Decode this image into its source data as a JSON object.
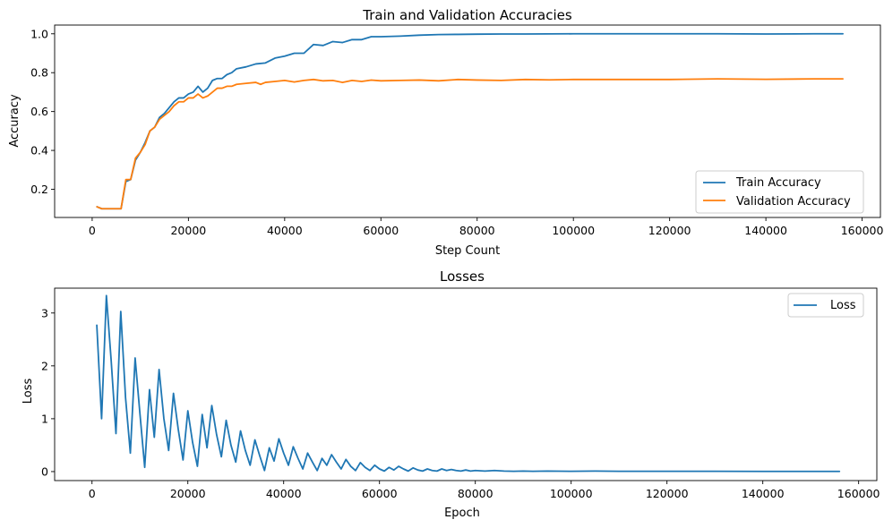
{
  "figure": {
    "background": "#ffffff"
  },
  "chart_data": [
    {
      "type": "line",
      "title": "Train and Validation Accuracies",
      "xlabel": "Step Count",
      "ylabel": "Accuracy",
      "xlim": [
        -7800,
        163800
      ],
      "ylim": [
        0.055,
        1.045
      ],
      "xticks": [
        0,
        20000,
        40000,
        60000,
        80000,
        100000,
        120000,
        140000,
        160000
      ],
      "xtick_labels": [
        "0",
        "20000",
        "40000",
        "60000",
        "80000",
        "100000",
        "120000",
        "140000",
        "160000"
      ],
      "yticks": [
        0.2,
        0.4,
        0.6,
        0.8,
        1.0
      ],
      "ytick_labels": [
        "0.2",
        "0.4",
        "0.6",
        "0.8",
        "1.0"
      ],
      "grid": false,
      "legend": {
        "position": "lower-right",
        "entries": [
          "Train Accuracy",
          "Validation Accuracy"
        ]
      },
      "series": [
        {
          "name": "Train Accuracy",
          "color": "#1f77b4",
          "points": [
            [
              1000,
              0.11
            ],
            [
              2000,
              0.1
            ],
            [
              3000,
              0.1
            ],
            [
              4000,
              0.1
            ],
            [
              5000,
              0.1
            ],
            [
              6000,
              0.1
            ],
            [
              7000,
              0.24
            ],
            [
              8000,
              0.25
            ],
            [
              9000,
              0.35
            ],
            [
              10000,
              0.39
            ],
            [
              11000,
              0.44
            ],
            [
              12000,
              0.5
            ],
            [
              13000,
              0.52
            ],
            [
              14000,
              0.57
            ],
            [
              15000,
              0.59
            ],
            [
              16000,
              0.62
            ],
            [
              17000,
              0.65
            ],
            [
              18000,
              0.67
            ],
            [
              19000,
              0.67
            ],
            [
              20000,
              0.69
            ],
            [
              21000,
              0.7
            ],
            [
              22000,
              0.73
            ],
            [
              23000,
              0.7
            ],
            [
              24000,
              0.72
            ],
            [
              25000,
              0.76
            ],
            [
              26000,
              0.77
            ],
            [
              27000,
              0.77
            ],
            [
              28000,
              0.79
            ],
            [
              29000,
              0.8
            ],
            [
              30000,
              0.82
            ],
            [
              32000,
              0.83
            ],
            [
              34000,
              0.845
            ],
            [
              36000,
              0.85
            ],
            [
              38000,
              0.875
            ],
            [
              40000,
              0.885
            ],
            [
              42000,
              0.9
            ],
            [
              44000,
              0.9
            ],
            [
              46000,
              0.945
            ],
            [
              48000,
              0.94
            ],
            [
              50000,
              0.96
            ],
            [
              52000,
              0.955
            ],
            [
              54000,
              0.97
            ],
            [
              56000,
              0.97
            ],
            [
              58000,
              0.985
            ],
            [
              60000,
              0.985
            ],
            [
              64000,
              0.988
            ],
            [
              68000,
              0.993
            ],
            [
              72000,
              0.996
            ],
            [
              76000,
              0.997
            ],
            [
              80000,
              0.998
            ],
            [
              85000,
              0.999
            ],
            [
              90000,
              0.999
            ],
            [
              100000,
              1.0
            ],
            [
              110000,
              1.0
            ],
            [
              120000,
              1.0
            ],
            [
              130000,
              1.0
            ],
            [
              140000,
              0.999
            ],
            [
              150000,
              1.0
            ],
            [
              156000,
              1.0
            ]
          ]
        },
        {
          "name": "Validation Accuracy",
          "color": "#ff7f0e",
          "points": [
            [
              1000,
              0.11
            ],
            [
              2000,
              0.1
            ],
            [
              3000,
              0.1
            ],
            [
              4000,
              0.1
            ],
            [
              5000,
              0.1
            ],
            [
              6000,
              0.1
            ],
            [
              7000,
              0.25
            ],
            [
              8000,
              0.25
            ],
            [
              9000,
              0.36
            ],
            [
              10000,
              0.39
            ],
            [
              11000,
              0.43
            ],
            [
              12000,
              0.5
            ],
            [
              13000,
              0.52
            ],
            [
              14000,
              0.56
            ],
            [
              15000,
              0.58
            ],
            [
              16000,
              0.6
            ],
            [
              17000,
              0.63
            ],
            [
              18000,
              0.65
            ],
            [
              19000,
              0.65
            ],
            [
              20000,
              0.67
            ],
            [
              21000,
              0.67
            ],
            [
              22000,
              0.69
            ],
            [
              23000,
              0.67
            ],
            [
              24000,
              0.68
            ],
            [
              25000,
              0.7
            ],
            [
              26000,
              0.72
            ],
            [
              27000,
              0.72
            ],
            [
              28000,
              0.73
            ],
            [
              29000,
              0.73
            ],
            [
              30000,
              0.74
            ],
            [
              32000,
              0.745
            ],
            [
              34000,
              0.75
            ],
            [
              35000,
              0.74
            ],
            [
              36000,
              0.75
            ],
            [
              38000,
              0.755
            ],
            [
              40000,
              0.76
            ],
            [
              42000,
              0.752
            ],
            [
              44000,
              0.76
            ],
            [
              46000,
              0.765
            ],
            [
              48000,
              0.758
            ],
            [
              50000,
              0.76
            ],
            [
              52000,
              0.75
            ],
            [
              54000,
              0.76
            ],
            [
              56000,
              0.755
            ],
            [
              58000,
              0.762
            ],
            [
              60000,
              0.758
            ],
            [
              64000,
              0.76
            ],
            [
              68000,
              0.762
            ],
            [
              72000,
              0.758
            ],
            [
              76000,
              0.765
            ],
            [
              80000,
              0.762
            ],
            [
              85000,
              0.76
            ],
            [
              90000,
              0.765
            ],
            [
              95000,
              0.763
            ],
            [
              100000,
              0.765
            ],
            [
              110000,
              0.765
            ],
            [
              120000,
              0.765
            ],
            [
              130000,
              0.768
            ],
            [
              140000,
              0.766
            ],
            [
              150000,
              0.768
            ],
            [
              156000,
              0.768
            ]
          ]
        }
      ]
    },
    {
      "type": "line",
      "title": "Losses",
      "xlabel": "Epoch",
      "ylabel": "Loss",
      "xlim": [
        -7800,
        163800
      ],
      "ylim": [
        -0.17,
        3.47
      ],
      "xticks": [
        0,
        20000,
        40000,
        60000,
        80000,
        100000,
        120000,
        140000,
        160000
      ],
      "xtick_labels": [
        "0",
        "20000",
        "40000",
        "60000",
        "80000",
        "100000",
        "120000",
        "140000",
        "160000"
      ],
      "yticks": [
        0,
        1,
        2,
        3
      ],
      "ytick_labels": [
        "0",
        "1",
        "2",
        "3"
      ],
      "grid": false,
      "legend": {
        "position": "top-right",
        "entries": [
          "Loss"
        ]
      },
      "series": [
        {
          "name": "Loss",
          "color": "#1f77b4",
          "points": [
            [
              1000,
              2.77
            ],
            [
              2000,
              1.0
            ],
            [
              3000,
              3.33
            ],
            [
              4000,
              2.1
            ],
            [
              5000,
              0.72
            ],
            [
              6000,
              3.03
            ],
            [
              7000,
              1.4
            ],
            [
              8000,
              0.35
            ],
            [
              9000,
              2.15
            ],
            [
              10000,
              1.1
            ],
            [
              11000,
              0.08
            ],
            [
              12000,
              1.55
            ],
            [
              13000,
              0.65
            ],
            [
              14000,
              1.93
            ],
            [
              15000,
              1.0
            ],
            [
              16000,
              0.4
            ],
            [
              17000,
              1.48
            ],
            [
              18000,
              0.8
            ],
            [
              19000,
              0.22
            ],
            [
              20000,
              1.15
            ],
            [
              21000,
              0.55
            ],
            [
              22000,
              0.1
            ],
            [
              23000,
              1.08
            ],
            [
              24000,
              0.45
            ],
            [
              25000,
              1.25
            ],
            [
              26000,
              0.7
            ],
            [
              27000,
              0.28
            ],
            [
              28000,
              0.97
            ],
            [
              29000,
              0.5
            ],
            [
              30000,
              0.18
            ],
            [
              31000,
              0.77
            ],
            [
              32000,
              0.4
            ],
            [
              33000,
              0.12
            ],
            [
              34000,
              0.6
            ],
            [
              35000,
              0.3
            ],
            [
              36000,
              0.02
            ],
            [
              37000,
              0.45
            ],
            [
              38000,
              0.2
            ],
            [
              39000,
              0.62
            ],
            [
              40000,
              0.35
            ],
            [
              41000,
              0.12
            ],
            [
              42000,
              0.47
            ],
            [
              43000,
              0.25
            ],
            [
              44000,
              0.05
            ],
            [
              45000,
              0.35
            ],
            [
              46000,
              0.18
            ],
            [
              47000,
              0.02
            ],
            [
              48000,
              0.25
            ],
            [
              49000,
              0.12
            ],
            [
              50000,
              0.32
            ],
            [
              51000,
              0.18
            ],
            [
              52000,
              0.05
            ],
            [
              53000,
              0.23
            ],
            [
              54000,
              0.1
            ],
            [
              55000,
              0.02
            ],
            [
              56000,
              0.17
            ],
            [
              57000,
              0.08
            ],
            [
              58000,
              0.02
            ],
            [
              59000,
              0.12
            ],
            [
              60000,
              0.05
            ],
            [
              61000,
              0.01
            ],
            [
              62000,
              0.08
            ],
            [
              63000,
              0.03
            ],
            [
              64000,
              0.1
            ],
            [
              65000,
              0.05
            ],
            [
              66000,
              0.01
            ],
            [
              67000,
              0.07
            ],
            [
              68000,
              0.03
            ],
            [
              69000,
              0.01
            ],
            [
              70000,
              0.05
            ],
            [
              71000,
              0.02
            ],
            [
              72000,
              0.01
            ],
            [
              73000,
              0.05
            ],
            [
              74000,
              0.02
            ],
            [
              75000,
              0.04
            ],
            [
              76000,
              0.02
            ],
            [
              77000,
              0.01
            ],
            [
              78000,
              0.03
            ],
            [
              79000,
              0.01
            ],
            [
              80000,
              0.02
            ],
            [
              82000,
              0.01
            ],
            [
              84000,
              0.02
            ],
            [
              86000,
              0.01
            ],
            [
              88000,
              0.005
            ],
            [
              90000,
              0.01
            ],
            [
              92000,
              0.005
            ],
            [
              95000,
              0.01
            ],
            [
              100000,
              0.005
            ],
            [
              105000,
              0.01
            ],
            [
              110000,
              0.005
            ],
            [
              120000,
              0.005
            ],
            [
              130000,
              0.005
            ],
            [
              140000,
              0.004
            ],
            [
              150000,
              0.003
            ],
            [
              156000,
              0.003
            ]
          ]
        }
      ]
    }
  ]
}
